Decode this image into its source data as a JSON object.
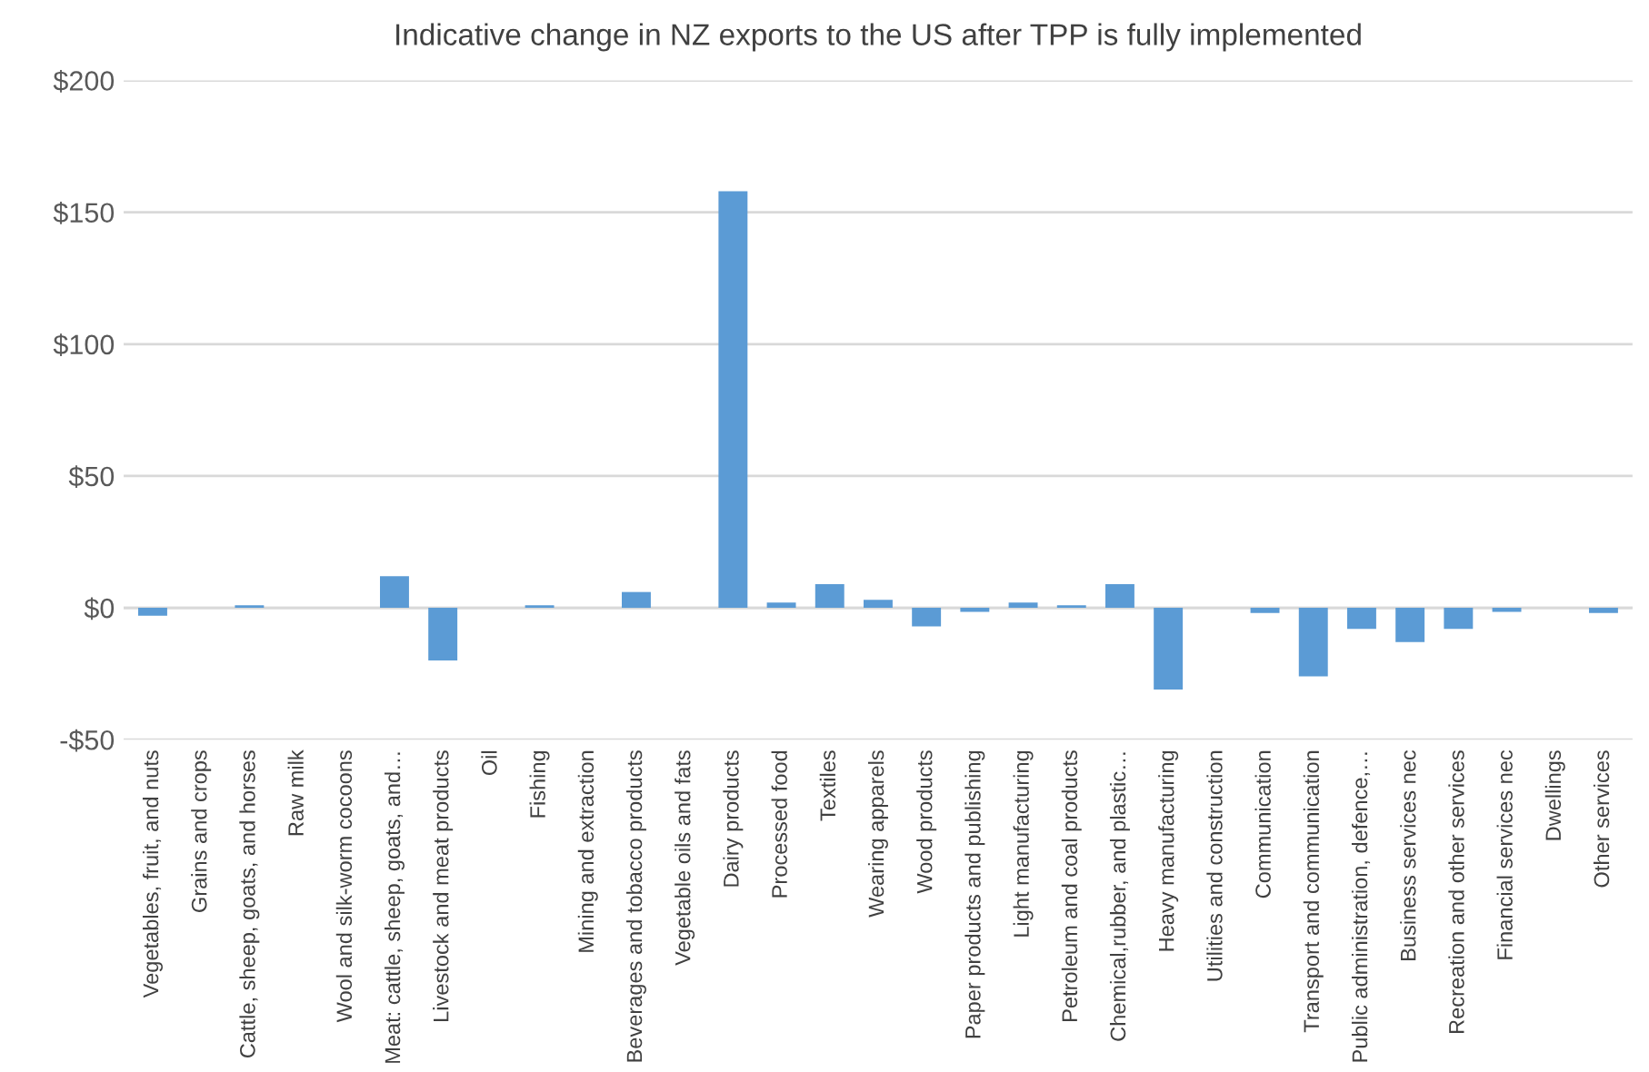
{
  "chart_data": {
    "type": "bar",
    "title": "Indicative change in NZ exports to the US after TPP is fully implemented",
    "categories": [
      "Vegetables, fruit, and nuts",
      "Grains and crops",
      "Cattle, sheep, goats, and horses",
      "Raw milk",
      "Wool and silk-worm cocoons",
      "Meat: cattle, sheep, goats, and…",
      "Livestock and meat products",
      "Oil",
      "Fishing",
      "Mining and extraction",
      "Beverages and tobacco products",
      "Vegetable oils and fats",
      "Dairy products",
      "Processed food",
      "Textiles",
      "Wearing apparels",
      "Wood products",
      "Paper products and publishing",
      "Light manufacturing",
      "Petroleum and coal products",
      "Chemical,rubber, and plastic…",
      "Heavy manufacturing",
      "Utilities and construction",
      "Communication",
      "Transport and communication",
      "Public administration, defence,…",
      "Business services nec",
      "Recreation and other services",
      "Financial services nec",
      "Dwellings",
      "Other services"
    ],
    "values": [
      -3,
      0,
      1,
      0,
      0,
      12,
      -20,
      0,
      1,
      0,
      6,
      0,
      158,
      2,
      9,
      3,
      -7,
      -1.5,
      2,
      1,
      9,
      -31,
      0,
      -2,
      -26,
      -8,
      -13,
      -8,
      -1.5,
      0,
      -2
    ],
    "color": "#5b9bd5",
    "ylim": [
      -50,
      200
    ],
    "yticks": [
      {
        "value": -50,
        "label": "-$50"
      },
      {
        "value": 0,
        "label": "$0"
      },
      {
        "value": 50,
        "label": "$50"
      },
      {
        "value": 100,
        "label": "$100"
      },
      {
        "value": 150,
        "label": "$150"
      },
      {
        "value": 200,
        "label": "$200"
      }
    ],
    "grid": "y"
  }
}
